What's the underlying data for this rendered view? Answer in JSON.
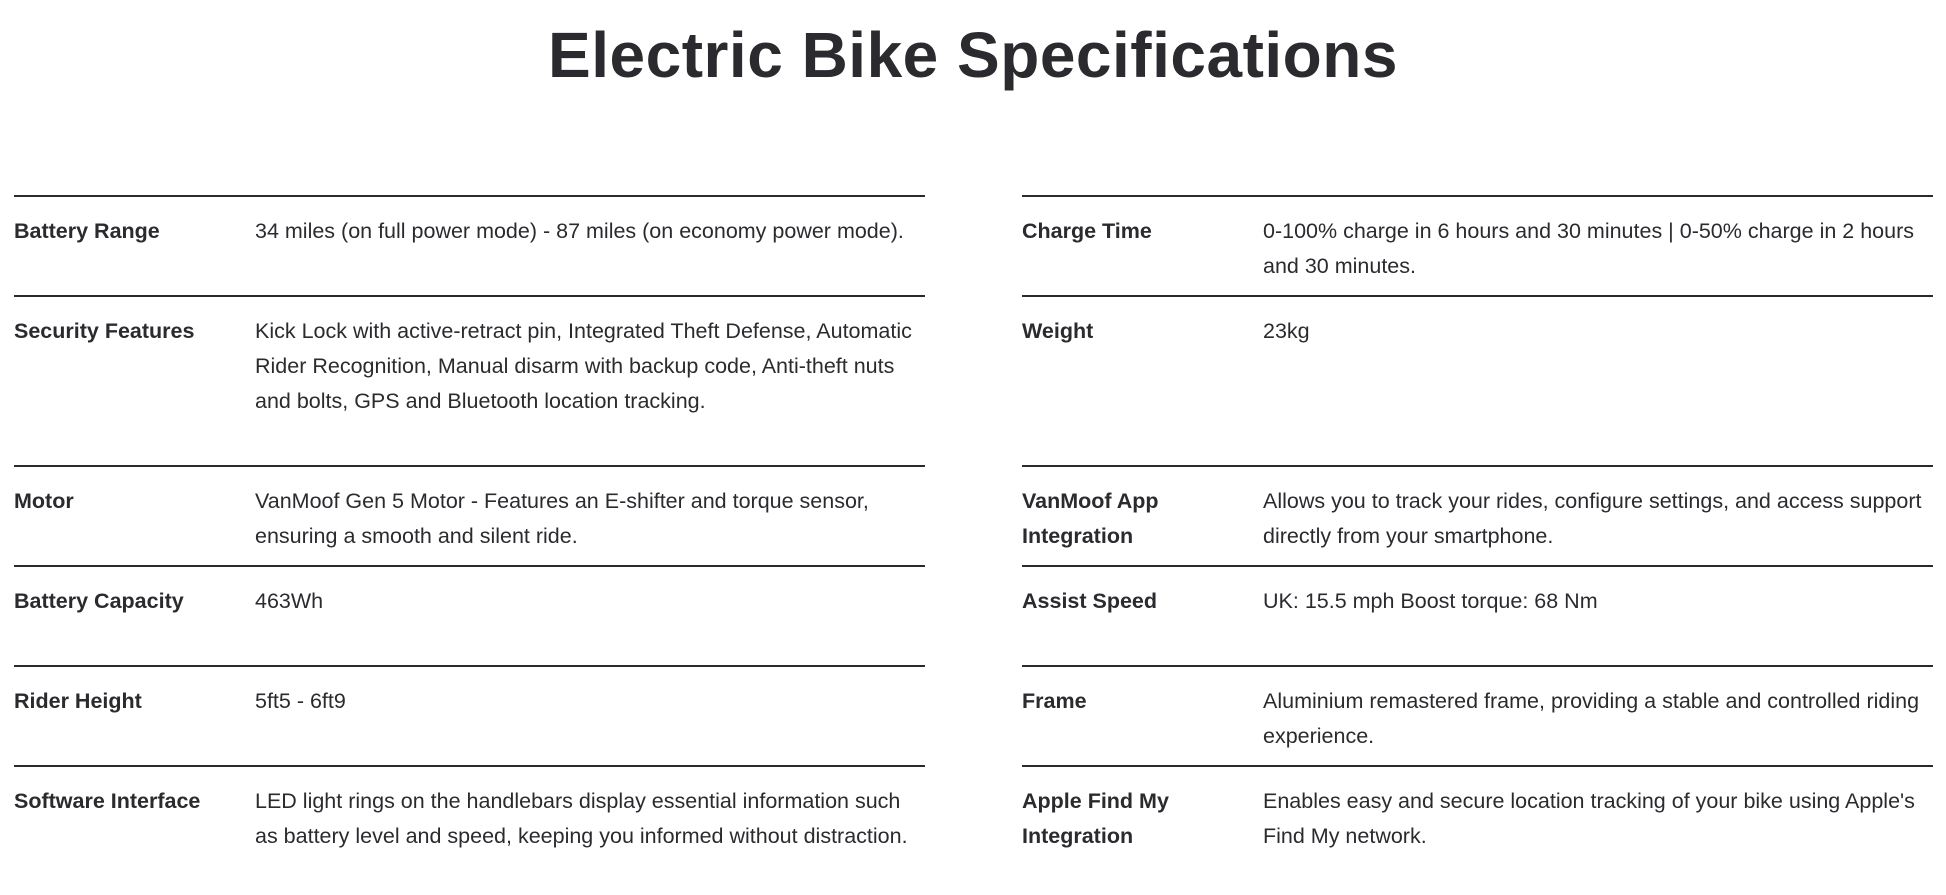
{
  "title": "Electric Bike Specifications",
  "left": [
    {
      "label": "Battery Range",
      "value": "34 miles (on full power mode) - 87 miles (on economy power mode)."
    },
    {
      "label": "Security Features",
      "value": "Kick Lock with active-retract pin, Integrated Theft Defense, Automatic Rider Recognition, Manual disarm with backup code, Anti-theft nuts and bolts, GPS and Bluetooth location tracking."
    },
    {
      "label": "Motor",
      "value": "VanMoof Gen 5 Motor - Features an E-shifter and torque sensor, ensuring a smooth and silent ride."
    },
    {
      "label": "Battery Capacity",
      "value": "463Wh"
    },
    {
      "label": "Rider Height",
      "value": "5ft5 - 6ft9"
    },
    {
      "label": "Software Interface",
      "value": "LED light rings on the handlebars display essential information such as battery level and speed, keeping you informed without distraction."
    }
  ],
  "right": [
    {
      "label": "Charge Time",
      "value": "0-100% charge in 6 hours and 30 minutes | 0-50% charge in 2 hours and 30 minutes."
    },
    {
      "label": "Weight",
      "value": "23kg"
    },
    {
      "label": "VanMoof App Integration",
      "value": "Allows you to track your rides, configure settings, and access support directly from your smartphone."
    },
    {
      "label": "Assist Speed",
      "value": "UK: 15.5 mph Boost torque: 68 Nm"
    },
    {
      "label": "Frame",
      "value": "Aluminium remastered frame, providing a stable and controlled riding experience."
    },
    {
      "label": "Apple Find My Integration",
      "value": "Enables easy and secure location tracking of your bike using Apple's Find My network."
    }
  ]
}
